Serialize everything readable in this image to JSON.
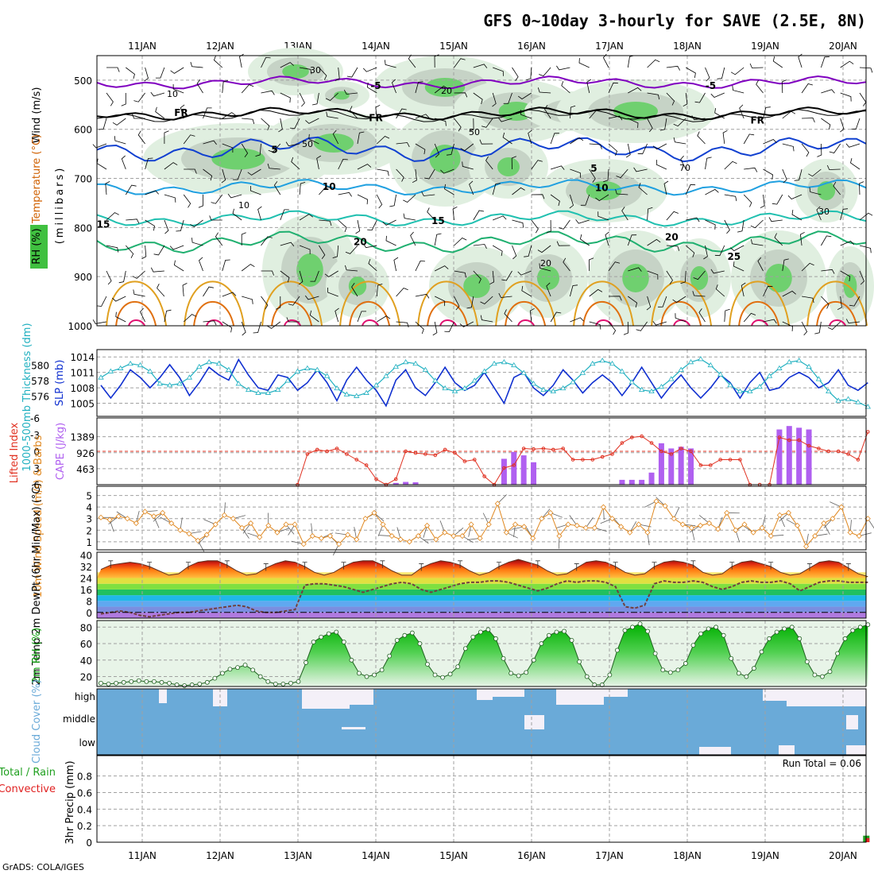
{
  "header": {
    "title": "GFS 0~10day 3-hourly for SAVE (2.5E, 8N)",
    "credit": "GrADS: COLA/IGES"
  },
  "colors": {
    "wind": "#000000",
    "temperature": "#8000c0",
    "rh": "#30c030",
    "thickness": "#20b0c0",
    "slp": "#1030d0",
    "lifted_index": "#e03020",
    "cape": "#b060f0",
    "wind10m": "#e08820",
    "temp2m": "#c03010",
    "rh2m": "#10a010",
    "cloud": "#6aaad8",
    "rain": "#20a020",
    "convective": "#e02020"
  },
  "chart_data": [
    {
      "id": "upper",
      "type": "heatmap",
      "title": "GFS 0~10day 3-hourly for SAVE (2.5E, 8N)",
      "x_tick_labels": [
        "11JAN",
        "12JAN",
        "13JAN",
        "14JAN",
        "15JAN",
        "16JAN",
        "17JAN",
        "18JAN",
        "19JAN",
        "20JAN"
      ],
      "ylabel": "(millibars)",
      "y_ticks": [
        500,
        600,
        700,
        800,
        900,
        1000
      ],
      "ylim": [
        1000,
        450
      ],
      "legend_labels": [
        "RH (%)",
        "Temperature (°C)",
        "Wind (m/s)"
      ],
      "isotherm_labels": [
        {
          "label": "-5",
          "day": 3.5,
          "p": 510
        },
        {
          "label": "-5",
          "day": 7.8,
          "p": 510
        },
        {
          "label": "FR",
          "day": 1.0,
          "p": 565
        },
        {
          "label": "FR",
          "day": 3.5,
          "p": 575
        },
        {
          "label": "FR",
          "day": 8.4,
          "p": 580
        },
        {
          "label": "5",
          "day": 2.2,
          "p": 640
        },
        {
          "label": "5",
          "day": 6.3,
          "p": 678
        },
        {
          "label": "10",
          "day": 2.9,
          "p": 715
        },
        {
          "label": "10",
          "day": 6.4,
          "p": 718
        },
        {
          "label": "15",
          "day": 0.0,
          "p": 792
        },
        {
          "label": "15",
          "day": 4.3,
          "p": 785
        },
        {
          "label": "20",
          "day": 3.3,
          "p": 828
        },
        {
          "label": "20",
          "day": 7.3,
          "p": 818
        },
        {
          "label": "25",
          "day": 8.1,
          "p": 858
        }
      ],
      "rh_contour_labels": [
        "10",
        "20",
        "30",
        "50",
        "70"
      ]
    },
    {
      "id": "slp",
      "type": "line",
      "ylabel_left": "1000-500mb Thickness (dm)",
      "ylabel_right": "SLP (mb)",
      "left_ticks": [
        576,
        578,
        580
      ],
      "right_ticks": [
        1005,
        1008,
        1011,
        1014
      ],
      "series": [
        {
          "name": "SLP (mb)",
          "values": [
            1008.5,
            1006,
            1008.5,
            1011.5,
            1010,
            1008,
            1010,
            1012.5,
            1010,
            1006.5,
            1009,
            1012,
            1010.5,
            1009.5,
            1013.5,
            1010.5,
            1008,
            1007.5,
            1010.5,
            1010,
            1007.5,
            1009,
            1011.5,
            1009,
            1005.5,
            1009.5,
            1012,
            1009.5,
            1007.5,
            1004.5,
            1009.5,
            1011.5,
            1008,
            1006.5,
            1009,
            1012,
            1009,
            1007.5,
            1008.5,
            1011,
            1008,
            1005,
            1010,
            1011,
            1008,
            1006.5,
            1008.5,
            1011.5,
            1009.5,
            1007,
            1009,
            1010.5,
            1009,
            1006.5,
            1009,
            1012,
            1009,
            1006,
            1008.5,
            1010.5,
            1008,
            1006,
            1008,
            1010.5,
            1009,
            1006,
            1009,
            1011,
            1007.5,
            1008,
            1010,
            1011,
            1010,
            1008,
            1009,
            1011.5,
            1008.5,
            1007.5,
            1009
          ]
        },
        {
          "name": "Thickness (dm)",
          "values": [
            578.4,
            579.2,
            579.6,
            580.2,
            580.0,
            579.2,
            577.6,
            577.4,
            577.6,
            578.4,
            579.8,
            580.4,
            580.2,
            579.4,
            577.6,
            576.8,
            576.4,
            576.4,
            576.8,
            578.0,
            579.2,
            579.6,
            579.4,
            578.6,
            577.0,
            576.2,
            576.0,
            576.4,
            577.4,
            578.6,
            579.8,
            580.4,
            580.2,
            579.4,
            578.0,
            577.0,
            576.6,
            577.0,
            578.0,
            579.2,
            580.2,
            580.4,
            580.0,
            579.0,
            577.6,
            576.8,
            576.6,
            577.0,
            577.8,
            579.0,
            580.2,
            580.6,
            580.2,
            579.2,
            577.8,
            576.8,
            576.6,
            577.2,
            578.2,
            579.4,
            580.4,
            580.8,
            580.0,
            578.8,
            577.4,
            576.6,
            576.6,
            577.2,
            578.6,
            579.6,
            580.4,
            580.6,
            579.8,
            578.2,
            576.6,
            575.4,
            575.6,
            575.2,
            574.6
          ]
        }
      ]
    },
    {
      "id": "cape",
      "type": "bar",
      "ylabel_left": "Lifted Index",
      "ylabel_right": "CAPE (J/kg)",
      "left_ticks": [
        -6,
        -3,
        0,
        3,
        6
      ],
      "right_ticks": [
        463,
        926,
        1389
      ],
      "series": [
        {
          "name": "Lifted Index",
          "values": [
            null,
            null,
            null,
            null,
            null,
            null,
            null,
            null,
            null,
            null,
            null,
            null,
            null,
            null,
            null,
            null,
            null,
            null,
            null,
            null,
            6.5,
            0.5,
            -0.3,
            0,
            -0.5,
            0.5,
            1.5,
            2.5,
            5,
            6.5,
            5,
            0,
            0.3,
            0.5,
            0.7,
            -0.3,
            0.3,
            1.8,
            1.5,
            4.5,
            6,
            3,
            2.5,
            -0.5,
            -0.4,
            -0.5,
            -0.3,
            -0.5,
            1.5,
            1.5,
            1.5,
            1.0,
            0.5,
            -1.5,
            -2.5,
            -2.7,
            -1.5,
            0,
            0.5,
            -0.5,
            0,
            2.5,
            2.5,
            1.5,
            1.5,
            1.5,
            6.5,
            6.5,
            6.5,
            -2.5,
            -2,
            -2,
            -1.0,
            -0.5,
            0,
            0,
            0.5,
            1.5,
            -3.5
          ]
        },
        {
          "name": "CAPE (J/kg)",
          "values": [
            0,
            0,
            0,
            0,
            0,
            0,
            0,
            0,
            0,
            0,
            0,
            0,
            0,
            0,
            0,
            0,
            0,
            0,
            0,
            0,
            0,
            0,
            0,
            0,
            0,
            0,
            0,
            0,
            0,
            0,
            50,
            80,
            70,
            0,
            0,
            0,
            0,
            0,
            0,
            0,
            0,
            750,
            950,
            850,
            650,
            0,
            0,
            0,
            0,
            0,
            0,
            0,
            0,
            140,
            140,
            140,
            350,
            1200,
            1050,
            1100,
            1050,
            0,
            0,
            0,
            0,
            0,
            0,
            0,
            0,
            1600,
            1700,
            1650,
            1600,
            0,
            0,
            0,
            0,
            0,
            0
          ]
        }
      ]
    },
    {
      "id": "wind10m",
      "type": "line",
      "ylabel": "10m Wind Speed (m/s) & Barbs",
      "y_ticks": [
        1,
        2,
        3,
        4,
        5
      ],
      "ylim": [
        0.3,
        5.8
      ],
      "series": [
        {
          "name": "10m Wind Speed",
          "values": [
            3.1,
            2.9,
            3.2,
            3.0,
            2.6,
            3.6,
            3.2,
            3.5,
            2.6,
            2.0,
            1.7,
            1.1,
            1.6,
            2.5,
            3.3,
            3.0,
            2.2,
            2.6,
            1.4,
            2.4,
            1.8,
            2.5,
            2.5,
            0.8,
            1.5,
            1.3,
            1.5,
            0.8,
            1.6,
            1.2,
            3.0,
            3.5,
            2.5,
            1.5,
            1.2,
            1.0,
            1.5,
            2.4,
            1.2,
            1.8,
            1.5,
            1.5,
            2.5,
            1.3,
            2.5,
            4.3,
            1.8,
            2.5,
            2.3,
            1.3,
            3.0,
            3.5,
            1.5,
            2.5,
            2.4,
            2.2,
            2.2,
            4.0,
            3.0,
            2.3,
            1.8,
            2.5,
            1.8,
            4.5,
            4.1,
            3.0,
            2.5,
            2.2,
            2.4,
            2.6,
            2.1,
            3.5,
            2.0,
            2.5,
            1.8,
            2.2,
            1.5,
            3.3,
            3.5,
            2.4,
            0.6,
            1.5,
            2.6,
            3.0,
            4.0,
            1.8,
            1.5,
            3.0
          ]
        }
      ]
    },
    {
      "id": "temp2m",
      "type": "area",
      "ylabel": "2m Temp 2m DewPt (6hr Min/Max) (°C)",
      "y_ticks": [
        0,
        8,
        16,
        24,
        32,
        40
      ],
      "ylim": [
        -4,
        42
      ],
      "series": [
        {
          "name": "2m Temp",
          "values": [
            30,
            33,
            34,
            35,
            34,
            32,
            29,
            26,
            27,
            32,
            35,
            36,
            36,
            33,
            29,
            26,
            27,
            31,
            34,
            36,
            35,
            32,
            28,
            26,
            28,
            32,
            35,
            36,
            36,
            33,
            29,
            26,
            26,
            31,
            34,
            36,
            35,
            33,
            29,
            26,
            28,
            32,
            35,
            37,
            35,
            33,
            29,
            26,
            27,
            31,
            35,
            36,
            35,
            32,
            28,
            26,
            27,
            32,
            35,
            36,
            35,
            33,
            28,
            26,
            27,
            32,
            35,
            36,
            34,
            32,
            28,
            26,
            27,
            31,
            35,
            36,
            35,
            31,
            27,
            25
          ]
        },
        {
          "name": "2m DewPt",
          "values": [
            -1,
            0,
            1,
            0,
            -2,
            -3,
            -2,
            -1,
            0,
            0,
            1,
            2,
            3,
            4,
            5,
            4,
            1,
            0,
            0,
            1,
            2,
            19,
            20,
            20,
            19,
            18,
            16,
            14,
            16,
            18,
            20,
            21,
            20,
            16,
            14,
            16,
            18,
            20,
            21,
            21,
            22,
            22,
            21,
            19,
            17,
            15,
            17,
            20,
            22,
            21,
            22,
            22,
            21,
            18,
            4,
            3,
            5,
            20,
            22,
            21,
            21,
            22,
            21,
            18,
            16,
            18,
            21,
            22,
            21,
            21,
            22,
            20,
            15,
            18,
            21,
            22,
            22,
            21,
            21,
            21
          ]
        }
      ]
    },
    {
      "id": "rh2m",
      "type": "area",
      "ylabel": "2m RH (%)",
      "y_ticks": [
        20,
        40,
        60,
        80
      ],
      "ylim": [
        8,
        88
      ],
      "series": [
        {
          "name": "2m RH",
          "values": [
            12,
            11,
            12,
            13,
            14,
            15,
            14,
            14,
            13,
            12,
            10,
            9,
            10,
            11,
            13,
            18,
            24,
            29,
            31,
            34,
            28,
            20,
            14,
            11,
            11,
            12,
            14,
            37,
            62,
            68,
            72,
            74,
            62,
            40,
            24,
            20,
            22,
            28,
            45,
            64,
            70,
            73,
            60,
            35,
            22,
            19,
            23,
            32,
            54,
            68,
            74,
            77,
            66,
            42,
            24,
            21,
            25,
            40,
            60,
            70,
            74,
            75,
            64,
            38,
            20,
            10,
            10,
            22,
            52,
            76,
            80,
            84,
            75,
            48,
            28,
            25,
            28,
            36,
            58,
            72,
            78,
            80,
            70,
            42,
            24,
            20,
            30,
            50,
            66,
            74,
            78,
            80,
            66,
            38,
            22,
            20,
            26,
            48,
            66,
            76,
            80,
            83
          ]
        }
      ]
    },
    {
      "id": "cloud",
      "type": "bar",
      "ylabel": "Cloud Cover (%)",
      "categories": [
        "high",
        "middle",
        "low"
      ]
    },
    {
      "id": "precip",
      "type": "bar",
      "ylabel": "3hr Precip (mm)",
      "legend_labels": [
        "Total / Rain",
        "Convective"
      ],
      "y_ticks": [
        0,
        0.2,
        0.4,
        0.6,
        0.8
      ],
      "ylim": [
        0,
        1.0
      ],
      "annotation": "Run Total = 0.06",
      "series": [
        {
          "name": "Total / Rain",
          "values": [
            0,
            0,
            0,
            0,
            0,
            0,
            0,
            0,
            0,
            0,
            0,
            0,
            0,
            0,
            0,
            0,
            0,
            0,
            0,
            0,
            0,
            0,
            0,
            0,
            0,
            0,
            0,
            0,
            0,
            0,
            0,
            0,
            0,
            0,
            0,
            0,
            0,
            0,
            0,
            0,
            0,
            0,
            0,
            0,
            0,
            0,
            0,
            0,
            0,
            0,
            0,
            0,
            0,
            0,
            0,
            0,
            0,
            0,
            0,
            0,
            0,
            0,
            0,
            0,
            0,
            0,
            0,
            0,
            0,
            0,
            0,
            0,
            0,
            0,
            0,
            0,
            0,
            0,
            0.06
          ]
        },
        {
          "name": "Convective",
          "values": [
            0,
            0,
            0,
            0,
            0,
            0,
            0,
            0,
            0,
            0,
            0,
            0,
            0,
            0,
            0,
            0,
            0,
            0,
            0,
            0,
            0,
            0,
            0,
            0,
            0,
            0,
            0,
            0,
            0,
            0,
            0,
            0,
            0,
            0,
            0,
            0,
            0,
            0,
            0,
            0,
            0,
            0,
            0,
            0,
            0,
            0,
            0,
            0,
            0,
            0,
            0,
            0,
            0,
            0,
            0,
            0,
            0,
            0,
            0,
            0,
            0,
            0,
            0,
            0,
            0,
            0,
            0,
            0,
            0,
            0,
            0,
            0,
            0,
            0,
            0,
            0,
            0,
            0,
            0.05
          ]
        }
      ]
    }
  ]
}
